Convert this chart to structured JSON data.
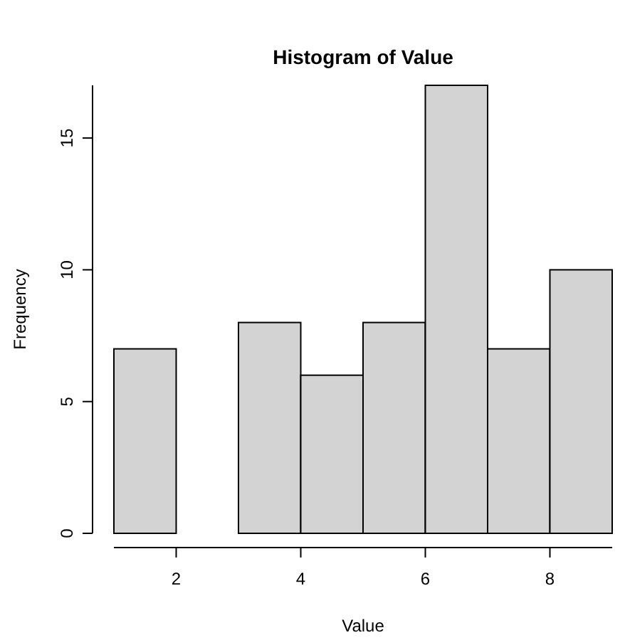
{
  "chart_data": {
    "type": "histogram",
    "title": "Histogram of Value",
    "xlabel": "Value",
    "ylabel": "Frequency",
    "bins": [
      1,
      2,
      3,
      4,
      5,
      6,
      7,
      8,
      9
    ],
    "values": [
      7,
      0,
      8,
      6,
      8,
      17,
      7,
      10
    ],
    "color": "#d3d3d3",
    "xlim": [
      1,
      9
    ],
    "xticks": [
      2,
      4,
      6,
      8
    ],
    "ylim": [
      0,
      17
    ],
    "yticks": [
      0,
      5,
      10,
      15
    ],
    "grid": false
  }
}
